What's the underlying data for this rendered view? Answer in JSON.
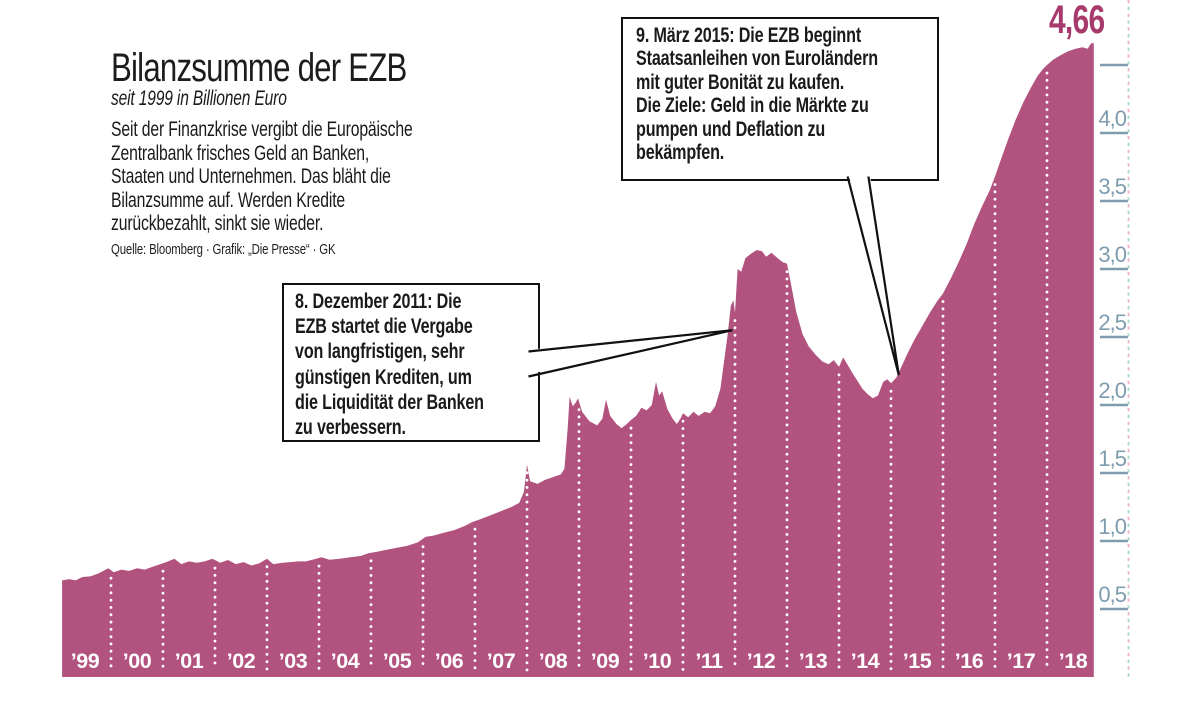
{
  "header": {
    "title": "Bilanzsumme der EZB",
    "subtitle": "seit 1999 in Billionen Euro",
    "description": [
      "Seit der Finanzkrise vergibt die Europäische",
      "Zentralbank frisches Geld an Banken,",
      "Staaten und Unternehmen. Das bläht die",
      "Bilanzsumme auf. Werden Kredite",
      "zurückbezahlt, sinkt sie wieder."
    ],
    "source": "Quelle: Bloomberg · Grafik: „Die Presse“ · GK"
  },
  "peak_label": "4,66",
  "annotations": [
    {
      "id": "ltro",
      "lines": [
        "8. Dezember 2011: Die",
        "EZB startet die Vergabe",
        "von langfristigen, sehr",
        "günstigen Krediten, um",
        "die Liquidität der Banken",
        "zu verbessern."
      ],
      "target_year": 2011.95,
      "target_value": 2.55
    },
    {
      "id": "qe",
      "lines": [
        "9. März 2015: Die EZB beginnt",
        "Staatsanleihen von Euroländern",
        "mit guter Bonität zu kaufen.",
        "Die Ziele: Geld in die Märkte zu",
        "pumpen und Deflation zu",
        "bekämpfen."
      ],
      "target_year": 2015.15,
      "target_value": 2.22
    }
  ],
  "colors": {
    "area": "#b1537e",
    "peak": "#a73a6d",
    "axis": "#7e9cad",
    "dot_pink": "#eeb3ca",
    "dot_teal": "#a9d8d2",
    "divider": "#ffffff",
    "box_border": "#111111"
  },
  "chart_data": {
    "type": "area",
    "title": "Bilanzsumme der EZB",
    "ylabel": "Billionen Euro",
    "x_range": [
      1999.06,
      2018.9
    ],
    "ylim": [
      0,
      4.7
    ],
    "grid": false,
    "legend": "none",
    "peak_value": 4.66,
    "x_labels": [
      "’99",
      "’00",
      "’01",
      "’02",
      "’03",
      "’04",
      "’05",
      "’06",
      "’07",
      "’08",
      "’09",
      "’10",
      "’11",
      "’12",
      "’13",
      "’14",
      "’15",
      "’16",
      "’17",
      "’18"
    ],
    "y_ticks": [
      {
        "value": 0.5,
        "label": "0,5"
      },
      {
        "value": 1.0,
        "label": "1,0"
      },
      {
        "value": 1.5,
        "label": "1,5"
      },
      {
        "value": 2.0,
        "label": "2,0"
      },
      {
        "value": 2.5,
        "label": "2,5"
      },
      {
        "value": 3.0,
        "label": "3,0"
      },
      {
        "value": 3.5,
        "label": "3,5"
      },
      {
        "value": 4.0,
        "label": "4,0"
      },
      {
        "value": 4.5,
        "label": ""
      }
    ],
    "points": [
      [
        1999.06,
        0.71
      ],
      [
        1999.2,
        0.72
      ],
      [
        1999.32,
        0.71
      ],
      [
        1999.45,
        0.735
      ],
      [
        1999.6,
        0.74
      ],
      [
        1999.75,
        0.76
      ],
      [
        1999.95,
        0.8
      ],
      [
        2000.05,
        0.77
      ],
      [
        2000.2,
        0.79
      ],
      [
        2000.35,
        0.78
      ],
      [
        2000.5,
        0.8
      ],
      [
        2000.65,
        0.79
      ],
      [
        2000.8,
        0.81
      ],
      [
        2000.95,
        0.83
      ],
      [
        2001.1,
        0.85
      ],
      [
        2001.22,
        0.87
      ],
      [
        2001.35,
        0.83
      ],
      [
        2001.5,
        0.85
      ],
      [
        2001.65,
        0.84
      ],
      [
        2001.8,
        0.85
      ],
      [
        2001.95,
        0.87
      ],
      [
        2002.1,
        0.84
      ],
      [
        2002.25,
        0.86
      ],
      [
        2002.4,
        0.83
      ],
      [
        2002.55,
        0.845
      ],
      [
        2002.7,
        0.82
      ],
      [
        2002.85,
        0.835
      ],
      [
        2003.0,
        0.87
      ],
      [
        2003.12,
        0.83
      ],
      [
        2003.3,
        0.84
      ],
      [
        2003.45,
        0.845
      ],
      [
        2003.6,
        0.85
      ],
      [
        2003.75,
        0.85
      ],
      [
        2003.9,
        0.865
      ],
      [
        2004.05,
        0.88
      ],
      [
        2004.2,
        0.862
      ],
      [
        2004.4,
        0.87
      ],
      [
        2004.6,
        0.88
      ],
      [
        2004.8,
        0.89
      ],
      [
        2004.95,
        0.91
      ],
      [
        2005.1,
        0.92
      ],
      [
        2005.3,
        0.935
      ],
      [
        2005.5,
        0.95
      ],
      [
        2005.7,
        0.965
      ],
      [
        2005.9,
        0.99
      ],
      [
        2006.05,
        1.03
      ],
      [
        2006.2,
        1.04
      ],
      [
        2006.4,
        1.06
      ],
      [
        2006.6,
        1.08
      ],
      [
        2006.8,
        1.11
      ],
      [
        2006.95,
        1.14
      ],
      [
        2007.1,
        1.16
      ],
      [
        2007.3,
        1.19
      ],
      [
        2007.5,
        1.22
      ],
      [
        2007.7,
        1.25
      ],
      [
        2007.85,
        1.28
      ],
      [
        2007.94,
        1.36
      ],
      [
        2008.0,
        1.56
      ],
      [
        2008.06,
        1.44
      ],
      [
        2008.2,
        1.42
      ],
      [
        2008.35,
        1.45
      ],
      [
        2008.5,
        1.47
      ],
      [
        2008.65,
        1.49
      ],
      [
        2008.72,
        1.53
      ],
      [
        2008.78,
        1.82
      ],
      [
        2008.82,
        2.06
      ],
      [
        2008.88,
        1.99
      ],
      [
        2008.94,
        2.02
      ],
      [
        2008.98,
        2.05
      ],
      [
        2009.06,
        1.95
      ],
      [
        2009.2,
        1.88
      ],
      [
        2009.35,
        1.85
      ],
      [
        2009.45,
        1.9
      ],
      [
        2009.52,
        2.04
      ],
      [
        2009.6,
        1.92
      ],
      [
        2009.72,
        1.86
      ],
      [
        2009.82,
        1.83
      ],
      [
        2009.92,
        1.86
      ],
      [
        2010.0,
        1.89
      ],
      [
        2010.1,
        1.92
      ],
      [
        2010.2,
        1.98
      ],
      [
        2010.3,
        1.96
      ],
      [
        2010.4,
        2.0
      ],
      [
        2010.48,
        2.17
      ],
      [
        2010.54,
        2.07
      ],
      [
        2010.6,
        2.1
      ],
      [
        2010.7,
        1.97
      ],
      [
        2010.8,
        1.9
      ],
      [
        2010.88,
        1.86
      ],
      [
        2010.95,
        1.9
      ],
      [
        2011.0,
        1.94
      ],
      [
        2011.1,
        1.91
      ],
      [
        2011.2,
        1.95
      ],
      [
        2011.3,
        1.92
      ],
      [
        2011.42,
        1.95
      ],
      [
        2011.52,
        1.94
      ],
      [
        2011.62,
        1.99
      ],
      [
        2011.72,
        2.12
      ],
      [
        2011.8,
        2.35
      ],
      [
        2011.86,
        2.52
      ],
      [
        2011.92,
        2.73
      ],
      [
        2011.97,
        2.77
      ],
      [
        2012.0,
        2.68
      ],
      [
        2012.05,
        3.0
      ],
      [
        2012.12,
        2.98
      ],
      [
        2012.2,
        3.08
      ],
      [
        2012.3,
        3.11
      ],
      [
        2012.42,
        3.14
      ],
      [
        2012.52,
        3.13
      ],
      [
        2012.6,
        3.09
      ],
      [
        2012.7,
        3.12
      ],
      [
        2012.82,
        3.08
      ],
      [
        2012.92,
        3.05
      ],
      [
        2013.0,
        3.04
      ],
      [
        2013.08,
        2.88
      ],
      [
        2013.18,
        2.68
      ],
      [
        2013.3,
        2.52
      ],
      [
        2013.42,
        2.43
      ],
      [
        2013.55,
        2.37
      ],
      [
        2013.68,
        2.32
      ],
      [
        2013.8,
        2.3
      ],
      [
        2013.9,
        2.33
      ],
      [
        2014.0,
        2.28
      ],
      [
        2014.08,
        2.35
      ],
      [
        2014.16,
        2.3
      ],
      [
        2014.25,
        2.24
      ],
      [
        2014.35,
        2.18
      ],
      [
        2014.45,
        2.12
      ],
      [
        2014.55,
        2.08
      ],
      [
        2014.65,
        2.05
      ],
      [
        2014.75,
        2.07
      ],
      [
        2014.85,
        2.17
      ],
      [
        2014.93,
        2.19
      ],
      [
        2015.0,
        2.16
      ],
      [
        2015.1,
        2.2
      ],
      [
        2015.2,
        2.28
      ],
      [
        2015.32,
        2.38
      ],
      [
        2015.45,
        2.48
      ],
      [
        2015.6,
        2.58
      ],
      [
        2015.75,
        2.68
      ],
      [
        2015.9,
        2.77
      ],
      [
        2016.0,
        2.82
      ],
      [
        2016.15,
        2.93
      ],
      [
        2016.3,
        3.05
      ],
      [
        2016.45,
        3.18
      ],
      [
        2016.6,
        3.33
      ],
      [
        2016.75,
        3.46
      ],
      [
        2016.9,
        3.58
      ],
      [
        2017.0,
        3.68
      ],
      [
        2017.12,
        3.81
      ],
      [
        2017.25,
        3.95
      ],
      [
        2017.4,
        4.1
      ],
      [
        2017.55,
        4.23
      ],
      [
        2017.7,
        4.34
      ],
      [
        2017.82,
        4.42
      ],
      [
        2017.92,
        4.47
      ],
      [
        2018.0,
        4.5
      ],
      [
        2018.12,
        4.54
      ],
      [
        2018.25,
        4.57
      ],
      [
        2018.4,
        4.6
      ],
      [
        2018.55,
        4.62
      ],
      [
        2018.68,
        4.63
      ],
      [
        2018.78,
        4.62
      ],
      [
        2018.85,
        4.66
      ],
      [
        2018.9,
        4.66
      ]
    ]
  }
}
